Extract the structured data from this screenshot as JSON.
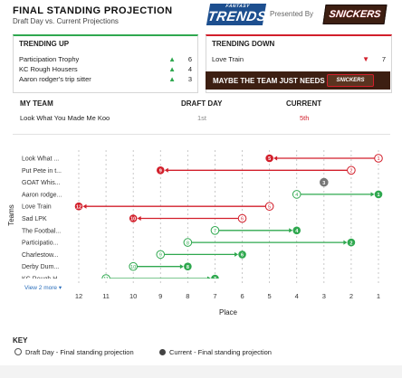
{
  "header": {
    "title": "FINAL STANDING PROJECTION",
    "subtitle": "Draft Day vs. Current Projections",
    "logo_small": "FANTASY",
    "logo_big": "TRENDS",
    "presented_by": "Presented By",
    "sponsor": "SNICKERS"
  },
  "trending_up": {
    "title": "TRENDING UP",
    "items": [
      {
        "name": "Participation Trophy",
        "count": "6"
      },
      {
        "name": "KC Rough Housers",
        "count": "4"
      },
      {
        "name": "Aaron rodger's trip sitter",
        "count": "3"
      }
    ]
  },
  "trending_down": {
    "title": "TRENDING DOWN",
    "items": [
      {
        "name": "Love Train",
        "count": "7"
      }
    ]
  },
  "ad": {
    "text": "MAYBE THE TEAM JUST NEEDS A",
    "bar_label": "SNICKERS"
  },
  "my_team": {
    "col1": "MY TEAM",
    "col2": "DRAFT DAY",
    "col3": "CURRENT",
    "team": "Look What You Made Me Koo",
    "draft": "1st",
    "current": "5th"
  },
  "more_link": "View 2 more",
  "key": {
    "title": "KEY",
    "draft": "Draft Day - Final standing projection",
    "current": "Current - Final standing projection"
  },
  "colors": {
    "up": "#2fa84f",
    "down": "#d21f2b",
    "same": "#777777"
  },
  "chart_data": {
    "type": "scatter",
    "xlabel": "Place",
    "ylabel": "Teams",
    "x_ticks": [
      12,
      11,
      10,
      9,
      8,
      7,
      6,
      5,
      4,
      3,
      2,
      1
    ],
    "xlim": [
      12,
      1
    ],
    "teams": [
      {
        "name": "Look What ...",
        "draft": 1,
        "current": 5,
        "trend": "down"
      },
      {
        "name": "Put Pete in t...",
        "draft": 2,
        "current": 9,
        "trend": "down"
      },
      {
        "name": "GOAT Whis...",
        "draft": 3,
        "current": 3,
        "trend": "same"
      },
      {
        "name": "Aaron rodge...",
        "draft": 4,
        "current": 1,
        "trend": "up"
      },
      {
        "name": "Love Train",
        "draft": 5,
        "current": 12,
        "trend": "down"
      },
      {
        "name": "Sad LPK",
        "draft": 6,
        "current": 10,
        "trend": "down"
      },
      {
        "name": "The Footbal...",
        "draft": 7,
        "current": 4,
        "trend": "up"
      },
      {
        "name": "Participatio...",
        "draft": 8,
        "current": 2,
        "trend": "up"
      },
      {
        "name": "Charlestow...",
        "draft": 9,
        "current": 6,
        "trend": "up"
      },
      {
        "name": "Derby Dum...",
        "draft": 10,
        "current": 8,
        "trend": "up"
      },
      {
        "name": "KC Rough H...",
        "draft": 11,
        "current": 7,
        "trend": "up"
      }
    ]
  }
}
